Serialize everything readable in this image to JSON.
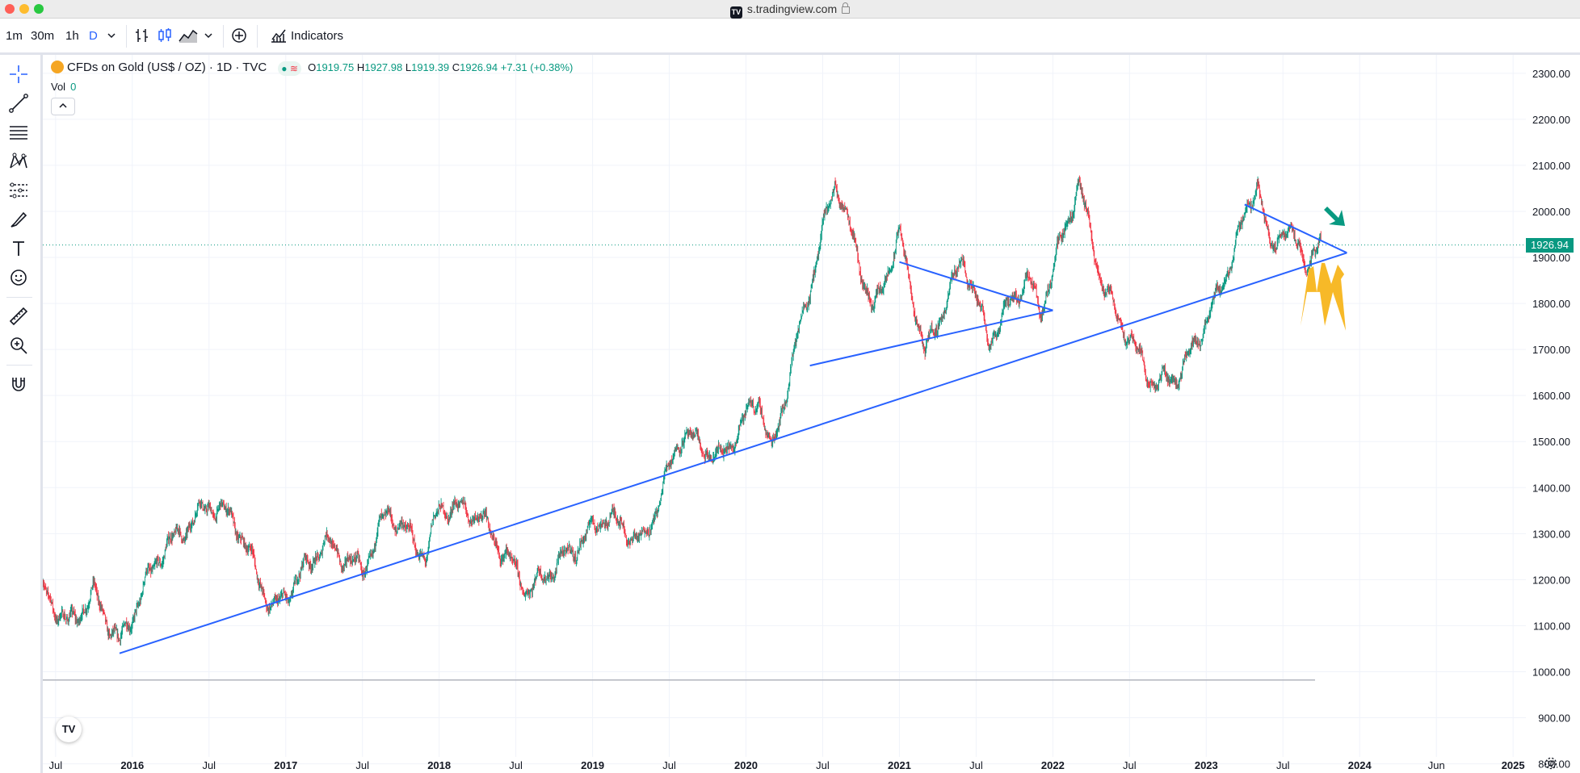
{
  "window": {
    "url": "s.tradingview.com",
    "traffic_colors": [
      "#ff5f57",
      "#febc2e",
      "#28c840"
    ]
  },
  "toolbar": {
    "intervals": [
      "1m",
      "30m",
      "1h",
      "D"
    ],
    "active_interval": "D",
    "indicators_label": "Indicators"
  },
  "legend": {
    "title": "CFDs on Gold (US$ / OZ) · 1D · TVC",
    "open_label": "O",
    "open": "1919.75",
    "high_label": "H",
    "high": "1927.98",
    "low_label": "L",
    "low": "1919.39",
    "close_label": "C",
    "close": "1926.94",
    "change": "+7.31 (+0.38%)",
    "volume_label": "Vol",
    "volume": "0"
  },
  "price_axis": {
    "ticks": [
      "2300.00",
      "2200.00",
      "2100.00",
      "2000.00",
      "1900.00",
      "1800.00",
      "1700.00",
      "1600.00",
      "1500.00",
      "1400.00",
      "1300.00",
      "1200.00",
      "1100.00",
      "1000.00",
      "900.00",
      "800.00"
    ],
    "current_price": "1926.94"
  },
  "time_axis": {
    "labels": [
      "Jul",
      "2016",
      "Jul",
      "2017",
      "Jul",
      "2018",
      "Jul",
      "2019",
      "Jul",
      "2020",
      "Jul",
      "2021",
      "Jul",
      "2022",
      "Jul",
      "2023",
      "Jul",
      "2024",
      "Jun",
      "2025"
    ]
  },
  "colors": {
    "up": "#089981",
    "down": "#f23645",
    "trendline": "#2962ff",
    "annotation_arrow_up": "#f7b928",
    "annotation_arrow_down": "#089981"
  },
  "chart_data": {
    "type": "candlestick",
    "symbol": "CFDs on Gold (US$ / OZ)",
    "interval": "1D",
    "ylim": [
      780,
      2340
    ],
    "x_range": [
      "2015-06",
      "2025-02"
    ],
    "last_close": 1926.94,
    "price_path": [
      [
        "2015-06",
        1180
      ],
      [
        "2015-08",
        1100
      ],
      [
        "2015-10",
        1170
      ],
      [
        "2015-12",
        1060
      ],
      [
        "2016-03",
        1250
      ],
      [
        "2016-07",
        1365
      ],
      [
        "2016-09",
        1330
      ],
      [
        "2016-12",
        1130
      ],
      [
        "2017-04",
        1280
      ],
      [
        "2017-07",
        1220
      ],
      [
        "2017-09",
        1350
      ],
      [
        "2017-12",
        1250
      ],
      [
        "2018-01",
        1360
      ],
      [
        "2018-04",
        1345
      ],
      [
        "2018-08",
        1175
      ],
      [
        "2018-12",
        1280
      ],
      [
        "2019-02",
        1340
      ],
      [
        "2019-05",
        1280
      ],
      [
        "2019-08",
        1520
      ],
      [
        "2019-11",
        1460
      ],
      [
        "2020-02",
        1600
      ],
      [
        "2020-03",
        1470
      ],
      [
        "2020-05",
        1720
      ],
      [
        "2020-08",
        2070
      ],
      [
        "2020-11",
        1780
      ],
      [
        "2021-01",
        1950
      ],
      [
        "2021-03",
        1690
      ],
      [
        "2021-06",
        1900
      ],
      [
        "2021-08",
        1720
      ],
      [
        "2021-11",
        1860
      ],
      [
        "2021-12",
        1780
      ],
      [
        "2022-03",
        2060
      ],
      [
        "2022-05",
        1830
      ],
      [
        "2022-09",
        1620
      ],
      [
        "2022-11",
        1650
      ],
      [
        "2023-02",
        1820
      ],
      [
        "2023-05",
        2070
      ],
      [
        "2023-06",
        1910
      ],
      [
        "2023-07",
        1970
      ],
      [
        "2023-09",
        1890
      ],
      [
        "2023-10",
        1927
      ]
    ],
    "trendlines": [
      {
        "from": [
          "2015-12",
          1040
        ],
        "to": [
          "2023-12",
          1910
        ]
      },
      {
        "from": [
          "2020-06",
          1665
        ],
        "to": [
          "2022-01",
          1785
        ]
      },
      {
        "from": [
          "2021-01",
          1890
        ],
        "to": [
          "2022-01",
          1785
        ]
      },
      {
        "from": [
          "2023-04",
          2015
        ],
        "to": [
          "2023-12",
          1910
        ]
      }
    ],
    "horizontal_line": 982,
    "current_price_line": 1926.94
  }
}
